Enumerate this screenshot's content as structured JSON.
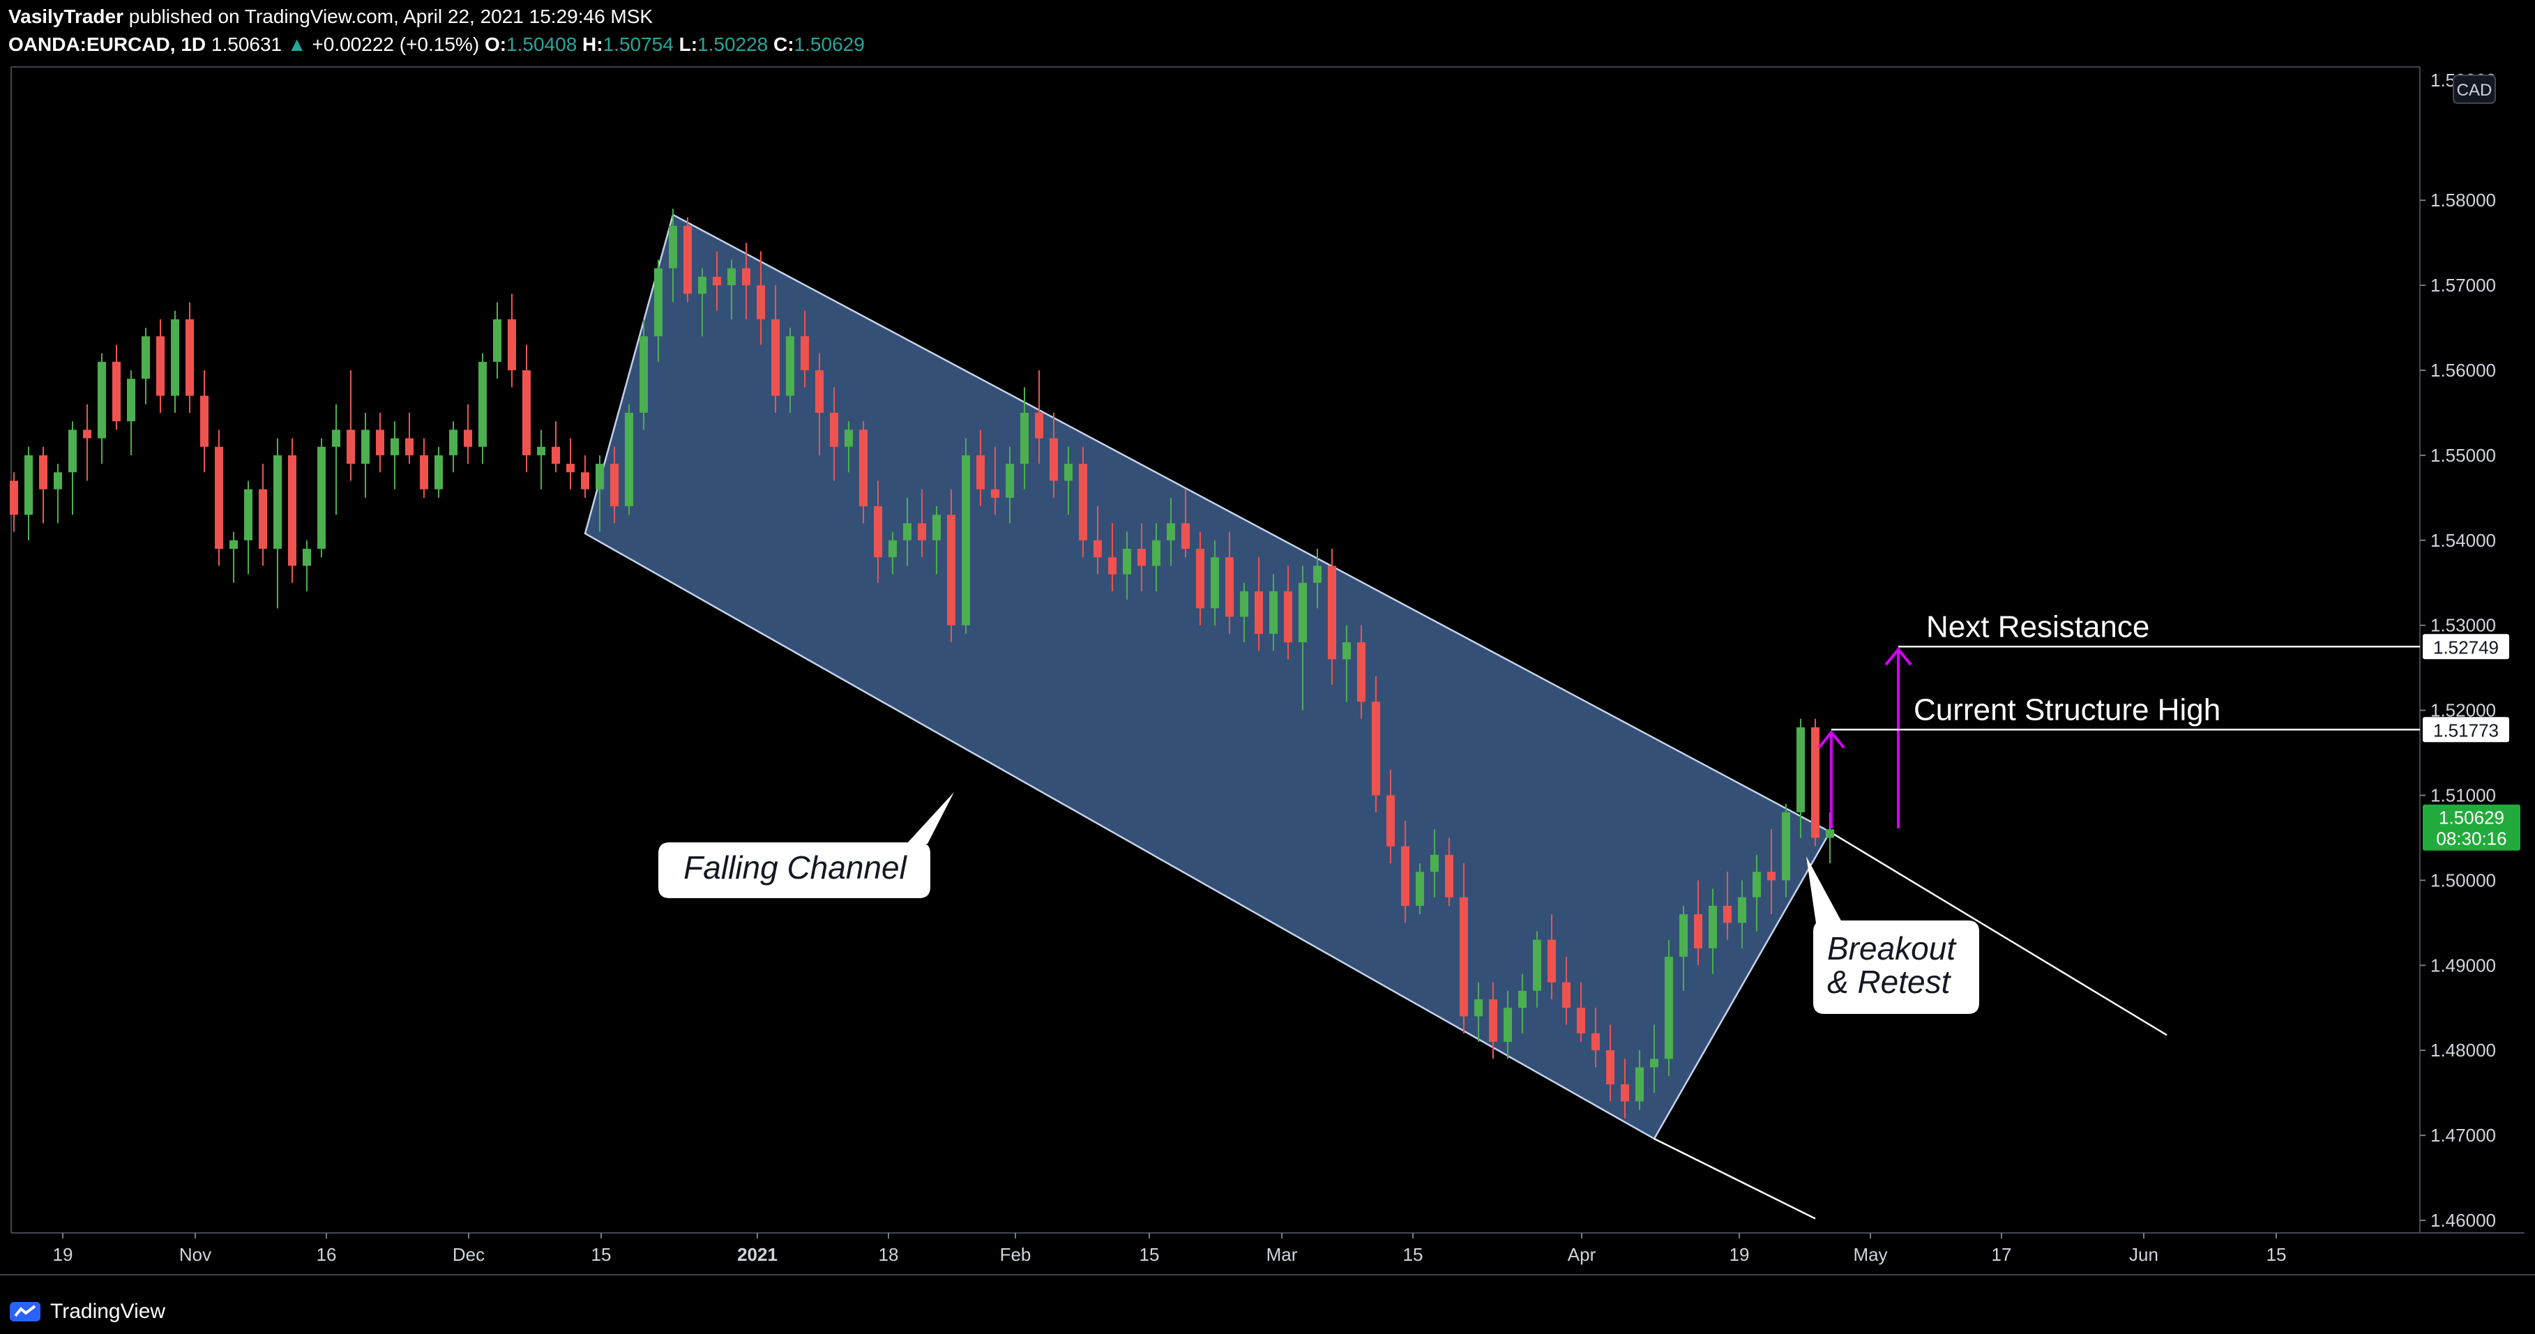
{
  "header": {
    "publisher": "VasilyTrader",
    "published_text": "published on TradingView.com, April 22, 2021 15:29:46 MSK",
    "symbol": "OANDA:EURCAD, 1D",
    "last": "1.50631",
    "change": "+0.00222 (+0.15%)",
    "open_label": "O:",
    "open": "1.50408",
    "high_label": "H:",
    "high": "1.50754",
    "low_label": "L:",
    "low": "1.50228",
    "close_label": "C:",
    "close": "1.50629",
    "change_arrow": "triangle-up-icon"
  },
  "footer": {
    "brand": "TradingView",
    "logo_icon": "tradingview-logo-icon"
  },
  "colors": {
    "bull": "#26a69a",
    "bull_bright": "#4caf50",
    "bear": "#ef5350",
    "channel_fill": "#4a6fa5",
    "arrow": "#d500f9",
    "price_badge": "#22ab3c"
  },
  "currency_badge": "CAD",
  "chart_data": {
    "type": "candlestick",
    "ylim": [
      1.455,
      1.59
    ],
    "y_ticks": [
      "1.58000",
      "1.57000",
      "1.56000",
      "1.55000",
      "1.54000",
      "1.53000",
      "1.52000",
      "1.51000",
      "1.50000",
      "1.49000",
      "1.48000",
      "1.47000",
      "1.46000"
    ],
    "x_ticks": [
      "19",
      "Nov",
      "16",
      "Dec",
      "15",
      "2021",
      "18",
      "Feb",
      "15",
      "Mar",
      "15",
      "Apr",
      "19",
      "May",
      "17",
      "Jun",
      "15"
    ],
    "series": [
      {
        "values": [
          [
            1.547,
            1.548,
            1.541,
            1.543
          ],
          [
            1.543,
            1.551,
            1.54,
            1.55
          ],
          [
            1.55,
            1.551,
            1.542,
            1.546
          ],
          [
            1.546,
            1.549,
            1.542,
            1.548
          ],
          [
            1.548,
            1.554,
            1.543,
            1.553
          ],
          [
            1.553,
            1.556,
            1.547,
            1.552
          ],
          [
            1.552,
            1.562,
            1.549,
            1.561
          ],
          [
            1.561,
            1.563,
            1.553,
            1.554
          ],
          [
            1.554,
            1.56,
            1.55,
            1.559
          ],
          [
            1.559,
            1.565,
            1.556,
            1.564
          ],
          [
            1.564,
            1.566,
            1.555,
            1.557
          ],
          [
            1.557,
            1.567,
            1.555,
            1.566
          ],
          [
            1.566,
            1.568,
            1.555,
            1.557
          ],
          [
            1.557,
            1.56,
            1.548,
            1.551
          ],
          [
            1.551,
            1.553,
            1.537,
            1.539
          ],
          [
            1.539,
            1.541,
            1.535,
            1.54
          ],
          [
            1.54,
            1.547,
            1.536,
            1.546
          ],
          [
            1.546,
            1.549,
            1.537,
            1.539
          ],
          [
            1.539,
            1.552,
            1.532,
            1.55
          ],
          [
            1.55,
            1.552,
            1.535,
            1.537
          ],
          [
            1.537,
            1.54,
            1.534,
            1.539
          ],
          [
            1.539,
            1.552,
            1.538,
            1.551
          ],
          [
            1.551,
            1.556,
            1.543,
            1.553
          ],
          [
            1.553,
            1.56,
            1.547,
            1.549
          ],
          [
            1.549,
            1.555,
            1.545,
            1.553
          ],
          [
            1.553,
            1.555,
            1.548,
            1.55
          ],
          [
            1.55,
            1.554,
            1.546,
            1.552
          ],
          [
            1.552,
            1.555,
            1.549,
            1.55
          ],
          [
            1.55,
            1.552,
            1.545,
            1.546
          ],
          [
            1.546,
            1.551,
            1.545,
            1.55
          ],
          [
            1.55,
            1.554,
            1.548,
            1.553
          ],
          [
            1.553,
            1.556,
            1.549,
            1.551
          ],
          [
            1.551,
            1.562,
            1.549,
            1.561
          ],
          [
            1.561,
            1.568,
            1.559,
            1.566
          ],
          [
            1.566,
            1.569,
            1.558,
            1.56
          ],
          [
            1.56,
            1.563,
            1.548,
            1.55
          ],
          [
            1.55,
            1.553,
            1.546,
            1.551
          ],
          [
            1.551,
            1.554,
            1.548,
            1.549
          ],
          [
            1.549,
            1.552,
            1.546,
            1.548
          ],
          [
            1.548,
            1.55,
            1.545,
            1.546
          ],
          [
            1.546,
            1.55,
            1.541,
            1.549
          ],
          [
            1.549,
            1.551,
            1.542,
            1.544
          ],
          [
            1.544,
            1.556,
            1.543,
            1.555
          ],
          [
            1.555,
            1.566,
            1.553,
            1.564
          ],
          [
            1.564,
            1.573,
            1.561,
            1.572
          ],
          [
            1.572,
            1.579,
            1.568,
            1.577
          ],
          [
            1.577,
            1.578,
            1.568,
            1.569
          ],
          [
            1.569,
            1.572,
            1.564,
            1.571
          ],
          [
            1.571,
            1.574,
            1.567,
            1.57
          ],
          [
            1.57,
            1.573,
            1.566,
            1.572
          ],
          [
            1.572,
            1.575,
            1.566,
            1.57
          ],
          [
            1.57,
            1.574,
            1.563,
            1.566
          ],
          [
            1.566,
            1.57,
            1.555,
            1.557
          ],
          [
            1.557,
            1.565,
            1.555,
            1.564
          ],
          [
            1.564,
            1.567,
            1.558,
            1.56
          ],
          [
            1.56,
            1.562,
            1.55,
            1.555
          ],
          [
            1.555,
            1.558,
            1.547,
            1.551
          ],
          [
            1.551,
            1.554,
            1.548,
            1.553
          ],
          [
            1.553,
            1.554,
            1.542,
            1.544
          ],
          [
            1.544,
            1.547,
            1.535,
            1.538
          ],
          [
            1.538,
            1.541,
            1.536,
            1.54
          ],
          [
            1.54,
            1.545,
            1.537,
            1.542
          ],
          [
            1.542,
            1.546,
            1.538,
            1.54
          ],
          [
            1.54,
            1.544,
            1.536,
            1.543
          ],
          [
            1.543,
            1.546,
            1.528,
            1.53
          ],
          [
            1.53,
            1.552,
            1.529,
            1.55
          ],
          [
            1.55,
            1.553,
            1.544,
            1.546
          ],
          [
            1.546,
            1.551,
            1.543,
            1.545
          ],
          [
            1.545,
            1.551,
            1.542,
            1.549
          ],
          [
            1.549,
            1.558,
            1.546,
            1.555
          ],
          [
            1.555,
            1.56,
            1.549,
            1.552
          ],
          [
            1.552,
            1.555,
            1.545,
            1.547
          ],
          [
            1.547,
            1.551,
            1.543,
            1.549
          ],
          [
            1.549,
            1.551,
            1.538,
            1.54
          ],
          [
            1.54,
            1.544,
            1.536,
            1.538
          ],
          [
            1.538,
            1.542,
            1.534,
            1.536
          ],
          [
            1.536,
            1.541,
            1.533,
            1.539
          ],
          [
            1.539,
            1.542,
            1.534,
            1.537
          ],
          [
            1.537,
            1.542,
            1.534,
            1.54
          ],
          [
            1.54,
            1.545,
            1.537,
            1.542
          ],
          [
            1.542,
            1.546,
            1.538,
            1.539
          ],
          [
            1.539,
            1.541,
            1.53,
            1.532
          ],
          [
            1.532,
            1.54,
            1.53,
            1.538
          ],
          [
            1.538,
            1.541,
            1.529,
            1.531
          ],
          [
            1.531,
            1.535,
            1.528,
            1.534
          ],
          [
            1.534,
            1.538,
            1.527,
            1.529
          ],
          [
            1.529,
            1.536,
            1.527,
            1.534
          ],
          [
            1.534,
            1.537,
            1.526,
            1.528
          ],
          [
            1.528,
            1.537,
            1.52,
            1.535
          ],
          [
            1.535,
            1.539,
            1.532,
            1.537
          ],
          [
            1.537,
            1.539,
            1.523,
            1.526
          ],
          [
            1.526,
            1.53,
            1.521,
            1.528
          ],
          [
            1.528,
            1.53,
            1.519,
            1.521
          ],
          [
            1.521,
            1.524,
            1.508,
            1.51
          ],
          [
            1.51,
            1.513,
            1.502,
            1.504
          ],
          [
            1.504,
            1.507,
            1.495,
            1.497
          ],
          [
            1.497,
            1.502,
            1.496,
            1.501
          ],
          [
            1.501,
            1.506,
            1.498,
            1.503
          ],
          [
            1.503,
            1.505,
            1.497,
            1.498
          ],
          [
            1.498,
            1.502,
            1.482,
            1.484
          ],
          [
            1.484,
            1.488,
            1.481,
            1.486
          ],
          [
            1.486,
            1.488,
            1.479,
            1.481
          ],
          [
            1.481,
            1.487,
            1.479,
            1.485
          ],
          [
            1.485,
            1.489,
            1.482,
            1.487
          ],
          [
            1.487,
            1.494,
            1.485,
            1.493
          ],
          [
            1.493,
            1.496,
            1.486,
            1.488
          ],
          [
            1.488,
            1.491,
            1.483,
            1.485
          ],
          [
            1.485,
            1.488,
            1.481,
            1.482
          ],
          [
            1.482,
            1.485,
            1.478,
            1.48
          ],
          [
            1.48,
            1.483,
            1.474,
            1.476
          ],
          [
            1.476,
            1.479,
            1.472,
            1.474
          ],
          [
            1.474,
            1.48,
            1.473,
            1.478
          ],
          [
            1.478,
            1.483,
            1.475,
            1.479
          ],
          [
            1.479,
            1.493,
            1.477,
            1.491
          ],
          [
            1.491,
            1.497,
            1.487,
            1.496
          ],
          [
            1.496,
            1.5,
            1.49,
            1.492
          ],
          [
            1.492,
            1.499,
            1.489,
            1.497
          ],
          [
            1.497,
            1.501,
            1.493,
            1.495
          ],
          [
            1.495,
            1.5,
            1.492,
            1.498
          ],
          [
            1.498,
            1.503,
            1.494,
            1.501
          ],
          [
            1.501,
            1.506,
            1.496,
            1.5
          ],
          [
            1.5,
            1.509,
            1.498,
            1.508
          ],
          [
            1.508,
            1.519,
            1.505,
            1.518
          ],
          [
            1.518,
            1.519,
            1.504,
            1.505
          ],
          [
            1.505,
            1.508,
            1.502,
            1.506
          ]
        ]
      }
    ],
    "channel": {
      "upper": [
        [
          1.5783,
          45
        ],
        [
          1.5057,
          124
        ]
      ],
      "lower": [
        [
          1.5408,
          39
        ],
        [
          1.4696,
          112
        ]
      ]
    },
    "channel_extension": {
      "upper_end": [
        1.4818,
        147
      ],
      "lower_end": [
        1.4602,
        123
      ]
    },
    "levels": [
      {
        "price": 1.52749,
        "label": "Next Resistance",
        "tag": "1.52749"
      },
      {
        "price": 1.51773,
        "label": "Current Structure High",
        "tag": "1.51773"
      }
    ],
    "annotations": [
      {
        "text": "Falling Channel"
      },
      {
        "lines": [
          "Breakout",
          "& Retest"
        ]
      }
    ],
    "last_price_tag": {
      "price": "1.50629",
      "countdown": "08:30:16"
    },
    "crop_tick": "1.59000"
  }
}
